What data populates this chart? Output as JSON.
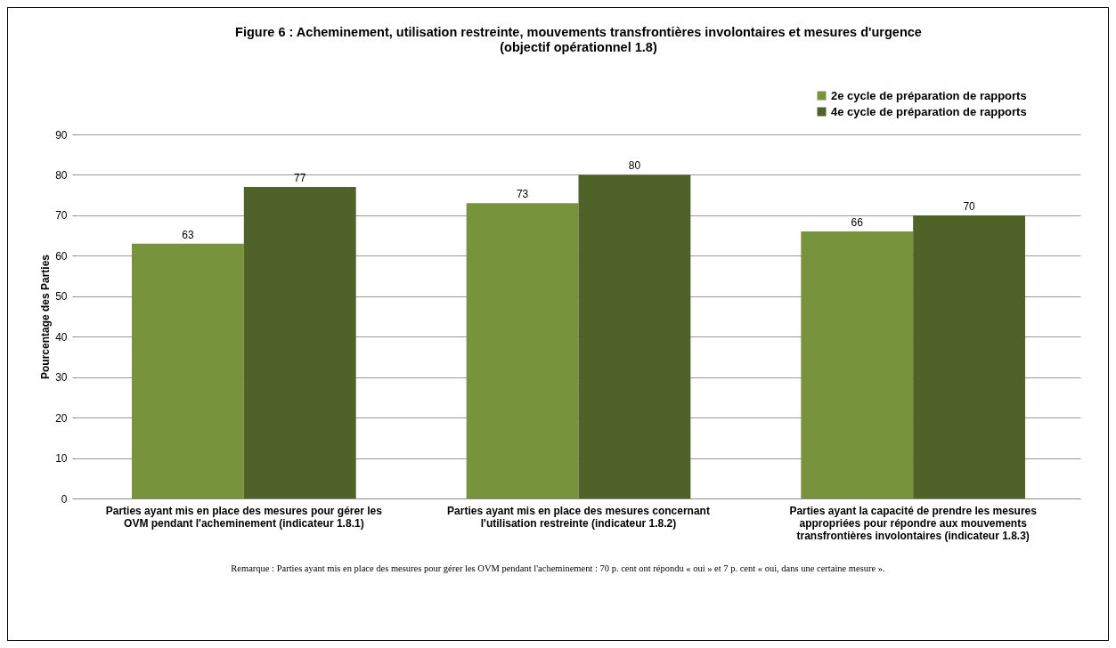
{
  "chart_data": {
    "type": "bar",
    "title": "Figure 6 : Acheminement, utilisation restreinte, mouvements transfrontières involontaires et mesures d'urgence (objectif opérationnel 1.8)",
    "ylabel": "Pourcentage des Parties",
    "categories": [
      "Parties ayant mis en place des mesures pour gérer les OVM pendant l'acheminement (indicateur 1.8.1)",
      "Parties ayant mis en place des mesures concernant l'utilisation restreinte (indicateur 1.8.2)",
      "Parties ayant la capacité de prendre les mesures appropriées pour répondre aux mouvements transfrontières involontaires (indicateur 1.8.3)"
    ],
    "series": [
      {
        "name": "2e cycle de préparation de rapports",
        "color": "#77933c",
        "values": [
          63,
          73,
          66
        ]
      },
      {
        "name": "4e cycle de préparation de rapports",
        "color": "#4f6228",
        "values": [
          77,
          80,
          70
        ]
      }
    ],
    "ylim": [
      0,
      90
    ],
    "yticks": [
      0,
      10,
      20,
      30,
      40,
      50,
      60,
      70,
      80,
      90
    ],
    "grid": "y",
    "legend": "top right",
    "data_labels": true,
    "annotations": [
      "Remarque : Parties ayant mis en place des mesures pour gérer les OVM pendant l'acheminement : 70 p. cent ont répondu « oui » et 7 p. cent « oui, dans une certaine mesure »."
    ]
  }
}
